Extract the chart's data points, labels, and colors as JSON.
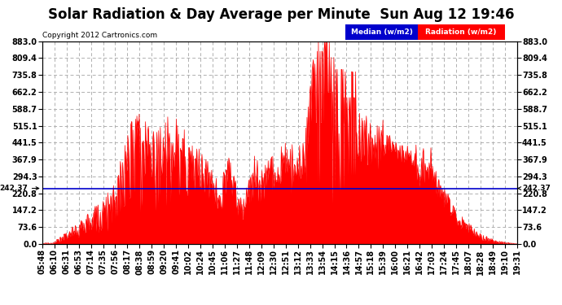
{
  "title": "Solar Radiation & Day Average per Minute  Sun Aug 12 19:46",
  "copyright": "Copyright 2012 Cartronics.com",
  "legend_median_label": "Median (w/m2)",
  "legend_radiation_label": "Radiation (w/m2)",
  "median_value": 242.37,
  "y_max": 883.0,
  "y_min": 0.0,
  "y_ticks": [
    0.0,
    73.6,
    147.2,
    220.8,
    294.3,
    367.9,
    441.5,
    515.1,
    588.7,
    662.2,
    735.8,
    809.4,
    883.0
  ],
  "background_color": "#ffffff",
  "plot_bg_color": "#ffffff",
  "grid_color": "#b0b0b0",
  "fill_color": "#ff0000",
  "median_line_color": "#0000cc",
  "title_fontsize": 12,
  "tick_fontsize": 7,
  "x_tick_labels": [
    "05:48",
    "06:10",
    "06:31",
    "06:53",
    "07:14",
    "07:35",
    "07:56",
    "08:17",
    "08:38",
    "08:59",
    "09:20",
    "09:41",
    "10:02",
    "10:24",
    "10:45",
    "11:06",
    "11:27",
    "11:48",
    "12:09",
    "12:30",
    "12:51",
    "13:12",
    "13:33",
    "13:54",
    "14:15",
    "14:36",
    "14:57",
    "15:18",
    "15:39",
    "16:00",
    "16:21",
    "16:42",
    "17:03",
    "17:24",
    "17:45",
    "18:07",
    "18:28",
    "18:49",
    "19:10",
    "19:31"
  ],
  "num_points": 833,
  "seed": 12345
}
